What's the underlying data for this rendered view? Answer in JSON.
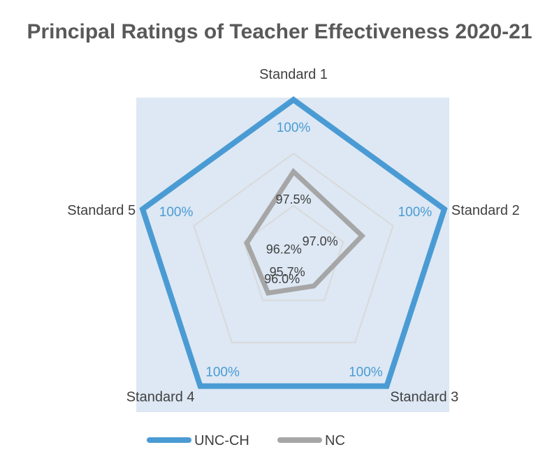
{
  "chart_data": {
    "type": "radar",
    "title": "Principal Ratings of Teacher Effectiveness 2020-21",
    "categories": [
      "Standard 1",
      "Standard 2",
      "Standard 3",
      "Standard 4",
      "Standard 5"
    ],
    "scale": {
      "min": 94.5,
      "max": 100
    },
    "series": [
      {
        "name": "UNC-CH",
        "values": [
          100,
          100,
          100,
          100,
          100
        ],
        "labels": [
          "100%",
          "100%",
          "100%",
          "100%",
          "100%"
        ],
        "color": "#4a9bd4"
      },
      {
        "name": "NC",
        "values": [
          97.5,
          97.0,
          95.7,
          96.0,
          96.2
        ],
        "labels": [
          "97.5%",
          "97.0%",
          "95.7%",
          "96.0%",
          "96.2%"
        ],
        "color": "#a6a6a6"
      }
    ],
    "plot_background": "#dde8f4",
    "gridline_color": "#d9d9d9",
    "legend_position": "bottom"
  }
}
